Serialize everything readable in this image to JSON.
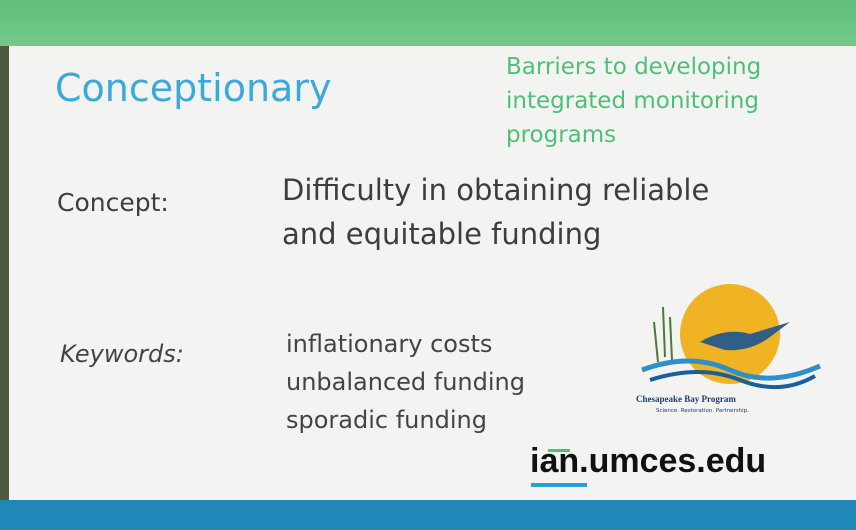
{
  "header": {
    "brand": "Conceptionary",
    "topic_lines": [
      "Barriers to developing",
      "integrated monitoring",
      "programs"
    ]
  },
  "concept": {
    "label": "Concept:",
    "lines": [
      "Difficulty in obtaining reliable",
      "and equitable funding"
    ]
  },
  "keywords": {
    "label": "Keywords:",
    "items": [
      "inflationary costs",
      "unbalanced funding",
      "sporadic funding"
    ]
  },
  "logo": {
    "name": "Chesapeake Bay Program",
    "tagline": "Science. Restoration. Partnership."
  },
  "footer": {
    "url": "ian.umces.edu"
  }
}
